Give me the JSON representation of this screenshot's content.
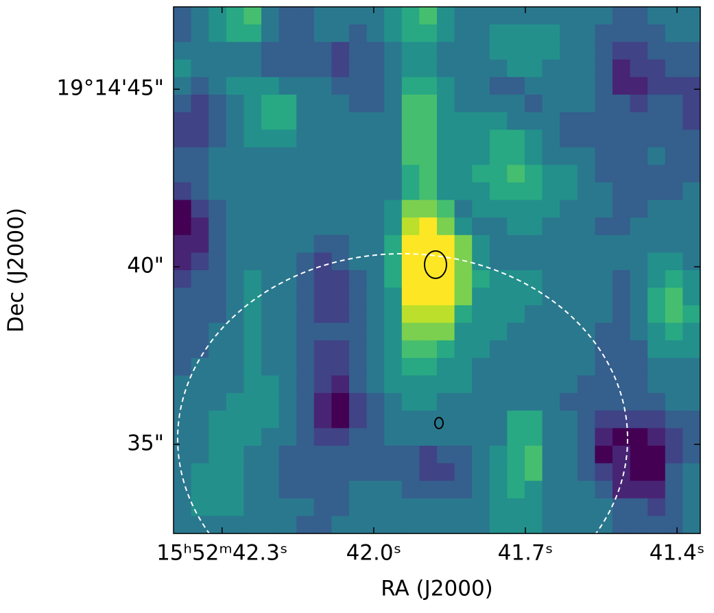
{
  "chart_data": {
    "type": "image",
    "colormap": "viridis",
    "zlim": [
      0,
      1
    ],
    "x_label": "RA (J2000)",
    "y_label": "Dec (J2000)",
    "xlim": [
      42.396,
      41.354
    ],
    "ylim": [
      32.49,
      47.32
    ],
    "xticks": [
      {
        "value": 42.3,
        "label": "15ʰ52ᵐ42.3ˢ"
      },
      {
        "value": 42.0,
        "label": "42.0ˢ"
      },
      {
        "value": 41.7,
        "label": "41.7ˢ"
      },
      {
        "value": 41.4,
        "label": "41.4ˢ"
      }
    ],
    "yticks": [
      {
        "value": 45,
        "label": "19°14'45\""
      },
      {
        "value": 40,
        "label": "40\""
      },
      {
        "value": 35,
        "label": "35\""
      }
    ],
    "z": [
      [
        0.3,
        0.4,
        0.5,
        0.6,
        0.7,
        0.4,
        0.3,
        0.3,
        0.4,
        0.4,
        0.4,
        0.4,
        0.5,
        0.6,
        0.7,
        0.5,
        0.4,
        0.4,
        0.4,
        0.4,
        0.4,
        0.4,
        0.4,
        0.4,
        0.4,
        0.3,
        0.3,
        0.4,
        0.4,
        0.4
      ],
      [
        0.3,
        0.4,
        0.5,
        0.6,
        0.6,
        0.4,
        0.3,
        0.3,
        0.4,
        0.4,
        0.3,
        0.4,
        0.5,
        0.6,
        0.6,
        0.5,
        0.4,
        0.4,
        0.5,
        0.5,
        0.5,
        0.5,
        0.4,
        0.4,
        0.3,
        0.3,
        0.3,
        0.3,
        0.4,
        0.4
      ],
      [
        0.4,
        0.4,
        0.4,
        0.4,
        0.4,
        0.3,
        0.3,
        0.3,
        0.3,
        0.2,
        0.3,
        0.3,
        0.4,
        0.5,
        0.5,
        0.4,
        0.4,
        0.4,
        0.5,
        0.5,
        0.5,
        0.5,
        0.4,
        0.4,
        0.3,
        0.2,
        0.2,
        0.3,
        0.3,
        0.3
      ],
      [
        0.5,
        0.4,
        0.4,
        0.4,
        0.4,
        0.3,
        0.3,
        0.3,
        0.3,
        0.2,
        0.3,
        0.3,
        0.4,
        0.5,
        0.5,
        0.4,
        0.4,
        0.4,
        0.4,
        0.5,
        0.5,
        0.4,
        0.4,
        0.4,
        0.3,
        0.1,
        0.2,
        0.2,
        0.3,
        0.3
      ],
      [
        0.4,
        0.3,
        0.4,
        0.5,
        0.5,
        0.5,
        0.4,
        0.4,
        0.4,
        0.3,
        0.3,
        0.3,
        0.4,
        0.6,
        0.6,
        0.5,
        0.4,
        0.4,
        0.3,
        0.3,
        0.4,
        0.4,
        0.4,
        0.4,
        0.3,
        0.1,
        0.1,
        0.2,
        0.2,
        0.2
      ],
      [
        0.3,
        0.2,
        0.3,
        0.4,
        0.5,
        0.6,
        0.6,
        0.4,
        0.4,
        0.4,
        0.3,
        0.3,
        0.4,
        0.7,
        0.7,
        0.5,
        0.4,
        0.4,
        0.4,
        0.4,
        0.3,
        0.4,
        0.4,
        0.4,
        0.3,
        0.3,
        0.2,
        0.3,
        0.3,
        0.2
      ],
      [
        0.2,
        0.2,
        0.3,
        0.4,
        0.5,
        0.6,
        0.6,
        0.4,
        0.4,
        0.4,
        0.4,
        0.4,
        0.4,
        0.7,
        0.7,
        0.5,
        0.5,
        0.5,
        0.5,
        0.4,
        0.4,
        0.4,
        0.3,
        0.3,
        0.3,
        0.3,
        0.3,
        0.3,
        0.3,
        0.2
      ],
      [
        0.2,
        0.2,
        0.3,
        0.4,
        0.5,
        0.5,
        0.5,
        0.4,
        0.4,
        0.4,
        0.4,
        0.4,
        0.4,
        0.7,
        0.7,
        0.5,
        0.5,
        0.5,
        0.6,
        0.6,
        0.5,
        0.4,
        0.3,
        0.3,
        0.3,
        0.3,
        0.3,
        0.3,
        0.3,
        0.3
      ],
      [
        0.3,
        0.3,
        0.4,
        0.4,
        0.4,
        0.4,
        0.4,
        0.4,
        0.4,
        0.4,
        0.4,
        0.4,
        0.4,
        0.7,
        0.7,
        0.5,
        0.5,
        0.5,
        0.6,
        0.6,
        0.5,
        0.4,
        0.4,
        0.4,
        0.3,
        0.3,
        0.3,
        0.4,
        0.3,
        0.3
      ],
      [
        0.3,
        0.3,
        0.4,
        0.4,
        0.4,
        0.4,
        0.4,
        0.4,
        0.4,
        0.4,
        0.4,
        0.4,
        0.4,
        0.6,
        0.7,
        0.5,
        0.5,
        0.6,
        0.6,
        0.7,
        0.6,
        0.5,
        0.5,
        0.4,
        0.3,
        0.3,
        0.3,
        0.3,
        0.3,
        0.3
      ],
      [
        0.2,
        0.3,
        0.4,
        0.4,
        0.4,
        0.4,
        0.4,
        0.4,
        0.4,
        0.4,
        0.4,
        0.4,
        0.4,
        0.6,
        0.7,
        0.5,
        0.5,
        0.5,
        0.6,
        0.6,
        0.6,
        0.5,
        0.5,
        0.4,
        0.4,
        0.3,
        0.3,
        0.3,
        0.3,
        0.4
      ],
      [
        0.0,
        0.2,
        0.3,
        0.4,
        0.4,
        0.4,
        0.4,
        0.4,
        0.4,
        0.4,
        0.4,
        0.4,
        0.5,
        0.8,
        0.8,
        0.7,
        0.4,
        0.5,
        0.5,
        0.5,
        0.5,
        0.5,
        0.4,
        0.4,
        0.4,
        0.3,
        0.3,
        0.4,
        0.4,
        0.4
      ],
      [
        0.0,
        0.1,
        0.3,
        0.4,
        0.4,
        0.4,
        0.4,
        0.4,
        0.4,
        0.4,
        0.4,
        0.4,
        0.5,
        0.9,
        1.0,
        0.8,
        0.5,
        0.4,
        0.4,
        0.5,
        0.5,
        0.4,
        0.4,
        0.4,
        0.3,
        0.3,
        0.4,
        0.4,
        0.4,
        0.4
      ],
      [
        0.1,
        0.1,
        0.3,
        0.4,
        0.4,
        0.4,
        0.4,
        0.4,
        0.3,
        0.3,
        0.4,
        0.4,
        0.6,
        1.0,
        1.0,
        1.0,
        0.8,
        0.5,
        0.4,
        0.4,
        0.4,
        0.4,
        0.4,
        0.4,
        0.4,
        0.4,
        0.4,
        0.4,
        0.4,
        0.4
      ],
      [
        0.1,
        0.2,
        0.3,
        0.4,
        0.4,
        0.4,
        0.4,
        0.3,
        0.2,
        0.3,
        0.4,
        0.4,
        0.6,
        1.0,
        1.0,
        1.0,
        0.8,
        0.5,
        0.4,
        0.4,
        0.4,
        0.4,
        0.4,
        0.4,
        0.4,
        0.4,
        0.4,
        0.5,
        0.5,
        0.4
      ],
      [
        0.2,
        0.3,
        0.3,
        0.4,
        0.5,
        0.4,
        0.4,
        0.3,
        0.2,
        0.2,
        0.3,
        0.4,
        0.6,
        1.0,
        1.0,
        1.0,
        0.8,
        0.6,
        0.5,
        0.5,
        0.5,
        0.4,
        0.4,
        0.4,
        0.4,
        0.3,
        0.4,
        0.5,
        0.6,
        0.5
      ],
      [
        0.3,
        0.3,
        0.3,
        0.4,
        0.5,
        0.4,
        0.4,
        0.3,
        0.2,
        0.2,
        0.3,
        0.4,
        0.5,
        1.0,
        1.0,
        1.0,
        0.8,
        0.5,
        0.5,
        0.5,
        0.5,
        0.4,
        0.4,
        0.4,
        0.4,
        0.3,
        0.4,
        0.6,
        0.7,
        0.5
      ],
      [
        0.3,
        0.3,
        0.3,
        0.4,
        0.5,
        0.4,
        0.4,
        0.3,
        0.2,
        0.2,
        0.3,
        0.4,
        0.5,
        0.9,
        0.9,
        0.9,
        0.6,
        0.5,
        0.5,
        0.5,
        0.4,
        0.4,
        0.4,
        0.4,
        0.4,
        0.3,
        0.4,
        0.6,
        0.7,
        0.6
      ],
      [
        0.3,
        0.3,
        0.4,
        0.4,
        0.5,
        0.4,
        0.4,
        0.3,
        0.3,
        0.3,
        0.3,
        0.4,
        0.5,
        0.8,
        0.8,
        0.8,
        0.5,
        0.5,
        0.5,
        0.4,
        0.4,
        0.4,
        0.4,
        0.4,
        0.3,
        0.3,
        0.4,
        0.5,
        0.6,
        0.5
      ],
      [
        0.3,
        0.3,
        0.4,
        0.4,
        0.5,
        0.4,
        0.4,
        0.3,
        0.2,
        0.2,
        0.3,
        0.4,
        0.5,
        0.7,
        0.7,
        0.6,
        0.5,
        0.5,
        0.4,
        0.4,
        0.4,
        0.4,
        0.4,
        0.4,
        0.3,
        0.3,
        0.3,
        0.5,
        0.5,
        0.5
      ],
      [
        0.3,
        0.4,
        0.4,
        0.4,
        0.5,
        0.4,
        0.4,
        0.3,
        0.2,
        0.2,
        0.3,
        0.4,
        0.5,
        0.6,
        0.6,
        0.5,
        0.5,
        0.4,
        0.4,
        0.4,
        0.4,
        0.4,
        0.4,
        0.4,
        0.3,
        0.3,
        0.3,
        0.4,
        0.4,
        0.4
      ],
      [
        0.4,
        0.4,
        0.4,
        0.4,
        0.5,
        0.5,
        0.4,
        0.3,
        0.2,
        0.1,
        0.3,
        0.4,
        0.5,
        0.5,
        0.5,
        0.5,
        0.5,
        0.4,
        0.4,
        0.4,
        0.4,
        0.4,
        0.4,
        0.3,
        0.3,
        0.3,
        0.3,
        0.4,
        0.4,
        0.4
      ],
      [
        0.4,
        0.4,
        0.4,
        0.5,
        0.5,
        0.5,
        0.4,
        0.3,
        0.1,
        0.0,
        0.2,
        0.3,
        0.4,
        0.5,
        0.5,
        0.4,
        0.4,
        0.4,
        0.4,
        0.4,
        0.4,
        0.4,
        0.3,
        0.3,
        0.3,
        0.3,
        0.3,
        0.3,
        0.4,
        0.4
      ],
      [
        0.4,
        0.4,
        0.5,
        0.5,
        0.5,
        0.5,
        0.4,
        0.3,
        0.1,
        0.0,
        0.2,
        0.3,
        0.4,
        0.4,
        0.4,
        0.4,
        0.4,
        0.4,
        0.4,
        0.6,
        0.6,
        0.4,
        0.4,
        0.3,
        0.2,
        0.2,
        0.2,
        0.2,
        0.3,
        0.3
      ],
      [
        0.4,
        0.4,
        0.5,
        0.5,
        0.5,
        0.4,
        0.4,
        0.3,
        0.2,
        0.2,
        0.3,
        0.3,
        0.4,
        0.4,
        0.4,
        0.4,
        0.4,
        0.4,
        0.4,
        0.6,
        0.6,
        0.4,
        0.4,
        0.3,
        0.1,
        0.0,
        0.0,
        0.1,
        0.2,
        0.3
      ],
      [
        0.4,
        0.4,
        0.5,
        0.5,
        0.4,
        0.4,
        0.3,
        0.3,
        0.3,
        0.3,
        0.3,
        0.3,
        0.3,
        0.3,
        0.2,
        0.3,
        0.3,
        0.4,
        0.5,
        0.6,
        0.7,
        0.4,
        0.4,
        0.3,
        0.0,
        0.1,
        0.0,
        0.0,
        0.2,
        0.3
      ],
      [
        0.4,
        0.5,
        0.5,
        0.5,
        0.4,
        0.4,
        0.3,
        0.3,
        0.3,
        0.3,
        0.3,
        0.3,
        0.3,
        0.3,
        0.2,
        0.2,
        0.3,
        0.4,
        0.5,
        0.6,
        0.7,
        0.4,
        0.4,
        0.3,
        0.2,
        0.1,
        0.0,
        0.0,
        0.3,
        0.4
      ],
      [
        0.4,
        0.5,
        0.5,
        0.5,
        0.4,
        0.4,
        0.3,
        0.3,
        0.3,
        0.3,
        0.4,
        0.4,
        0.4,
        0.3,
        0.3,
        0.3,
        0.3,
        0.4,
        0.5,
        0.6,
        0.5,
        0.4,
        0.4,
        0.4,
        0.3,
        0.1,
        0.1,
        0.1,
        0.3,
        0.4
      ],
      [
        0.4,
        0.5,
        0.5,
        0.5,
        0.4,
        0.4,
        0.4,
        0.4,
        0.3,
        0.3,
        0.4,
        0.4,
        0.4,
        0.4,
        0.4,
        0.4,
        0.4,
        0.4,
        0.5,
        0.5,
        0.5,
        0.4,
        0.4,
        0.4,
        0.4,
        0.3,
        0.3,
        0.2,
        0.3,
        0.4
      ],
      [
        0.4,
        0.4,
        0.4,
        0.4,
        0.4,
        0.4,
        0.4,
        0.3,
        0.3,
        0.4,
        0.4,
        0.4,
        0.4,
        0.4,
        0.4,
        0.4,
        0.4,
        0.4,
        0.5,
        0.5,
        0.5,
        0.4,
        0.4,
        0.4,
        0.4,
        0.3,
        0.3,
        0.3,
        0.3,
        0.4
      ]
    ]
  }
}
